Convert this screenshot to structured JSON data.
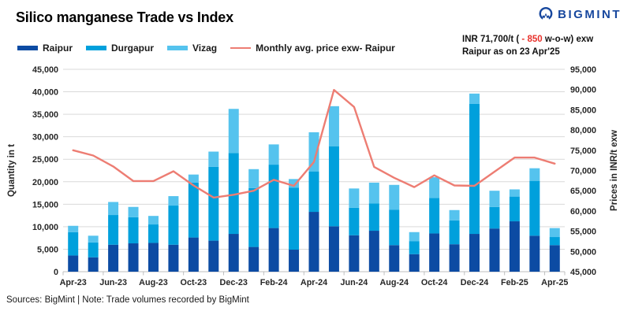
{
  "header": {
    "title": "Silico manganese Trade vs Index",
    "brand": "BIGMINT"
  },
  "annotation": {
    "prefix": "INR 71,700/t (",
    "delta": " - 850 ",
    "suffix": "w-o-w) exw",
    "line2": "Raipur as on 23 Apr'25"
  },
  "footer": {
    "text": "Sources: BigMint | Note: Trade volumes recorded by BigMint"
  },
  "colors": {
    "raipur": "#0c4ba3",
    "durgapur": "#00a0dc",
    "vizag": "#55c3ee",
    "price_line": "#ed7d73",
    "grid": "#d9d9d9",
    "axis_line": "#bfbfbf",
    "tick_text": "#262626",
    "logo_navy": "#17479e",
    "delta_red": "#e8302a"
  },
  "chart_data": {
    "type": "combo-stacked-bar-line",
    "title": "Silico manganese Trade vs Index",
    "categories": [
      "Apr-23",
      "May-23",
      "Jun-23",
      "Jul-23",
      "Aug-23",
      "Sep-23",
      "Oct-23",
      "Nov-23",
      "Dec-23",
      "Jan-24",
      "Feb-24",
      "Mar-24",
      "Apr-24",
      "May-24",
      "Jun-24",
      "Jul-24",
      "Aug-24",
      "Sep-24",
      "Oct-24",
      "Nov-24",
      "Dec-24",
      "Jan-25",
      "Feb-25",
      "Mar-25",
      "Apr-25"
    ],
    "series": [
      {
        "name": "Raipur",
        "type": "bar",
        "stack": "volume",
        "values": [
          3600,
          3200,
          6000,
          6300,
          6400,
          6000,
          7600,
          6900,
          8400,
          5500,
          9700,
          4900,
          13300,
          10100,
          8100,
          9100,
          5900,
          3900,
          8500,
          6100,
          8400,
          9600,
          11200,
          8000,
          5900
        ]
      },
      {
        "name": "Durgapur",
        "type": "bar",
        "stack": "volume",
        "values": [
          5200,
          3300,
          6600,
          5800,
          4100,
          8700,
          12200,
          16400,
          18000,
          13100,
          14100,
          13800,
          9000,
          17800,
          6100,
          6100,
          7900,
          2900,
          7900,
          5300,
          28900,
          4800,
          5500,
          12200,
          1800
        ]
      },
      {
        "name": "Vizag",
        "type": "bar",
        "stack": "volume",
        "values": [
          1400,
          1500,
          2900,
          2300,
          1900,
          2100,
          1800,
          3400,
          9800,
          4200,
          4500,
          1900,
          8700,
          8900,
          4300,
          4600,
          5500,
          2000,
          4600,
          2300,
          2300,
          3600,
          1600,
          2800,
          2000
        ]
      },
      {
        "name": "Monthly avg. price exw- Raipur",
        "type": "line",
        "axis": "right",
        "values": [
          75000,
          73700,
          71000,
          67400,
          67400,
          69800,
          66300,
          63300,
          64000,
          65000,
          67700,
          66200,
          72100,
          89900,
          85700,
          70900,
          68200,
          65900,
          68800,
          66300,
          66200,
          69700,
          73200,
          73200,
          71700
        ]
      }
    ],
    "left_axis": {
      "label": "Quantity in t",
      "min": 0,
      "max": 45000,
      "step": 5000,
      "ticks": [
        "0",
        "5,000",
        "10,000",
        "15,000",
        "20,000",
        "25,000",
        "30,000",
        "35,000",
        "40,000",
        "45,000"
      ]
    },
    "right_axis": {
      "label": "Prices in INR/t exw",
      "min": 45000,
      "max": 95000,
      "step": 5000,
      "ticks": [
        "45,000",
        "50,000",
        "55,000",
        "60,000",
        "65,000",
        "70,000",
        "75,000",
        "80,000",
        "85,000",
        "90,000",
        "95,000"
      ]
    },
    "x_tick_labels": [
      "Apr-23",
      "Jun-23",
      "Aug-23",
      "Oct-23",
      "Dec-23",
      "Feb-24",
      "Apr-24",
      "Jun-24",
      "Aug-24",
      "Oct-24",
      "Dec-24",
      "Feb-25",
      "Apr-25"
    ],
    "grid": "horizontal",
    "legend_position": "top-left"
  }
}
